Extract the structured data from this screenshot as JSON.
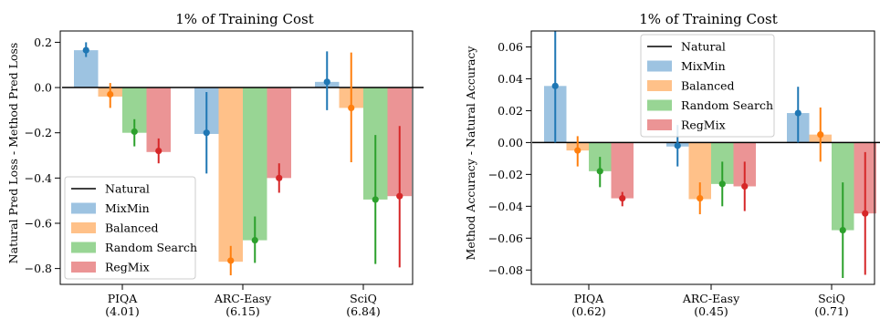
{
  "series_meta": [
    {
      "name": "MixMin",
      "bar_color": "#9dc3e1",
      "point_color": "#1f77b4"
    },
    {
      "name": "Balanced",
      "bar_color": "#ffc189",
      "point_color": "#ff7f0e"
    },
    {
      "name": "Random Search",
      "bar_color": "#98d594",
      "point_color": "#2ca02c"
    },
    {
      "name": "RegMix",
      "bar_color": "#eb9495",
      "point_color": "#d62728"
    }
  ],
  "baseline_label": "Natural",
  "chart_data": [
    {
      "type": "bar",
      "title": "1% of Training Cost",
      "ylabel": "Natural Pred Loss - Method Pred Loss",
      "xlabel": "",
      "categories": [
        "PIQA",
        "ARC-Easy",
        "SciQ"
      ],
      "category_sublabels": [
        "(4.01)",
        "(6.15)",
        "(6.84)"
      ],
      "ylim": [
        -0.87,
        0.25
      ],
      "yticks": [
        0.2,
        0.0,
        -0.2,
        -0.4,
        -0.6,
        -0.8
      ],
      "ytick_labels": [
        "0.2",
        "0.0",
        "−0.2",
        "−0.4",
        "−0.6",
        "−0.8"
      ],
      "legend_position": "lower-left",
      "series": [
        {
          "name": "MixMin",
          "values": [
            0.165,
            -0.205,
            0.025
          ],
          "points": [
            0.165,
            -0.2,
            0.025
          ],
          "err_low": [
            0.135,
            -0.38,
            -0.1
          ],
          "err_high": [
            0.2,
            -0.02,
            0.16
          ]
        },
        {
          "name": "Balanced",
          "values": [
            -0.04,
            -0.77,
            -0.09
          ],
          "points": [
            -0.03,
            -0.765,
            -0.09
          ],
          "err_low": [
            -0.09,
            -0.83,
            -0.33
          ],
          "err_high": [
            0.02,
            -0.7,
            0.155
          ]
        },
        {
          "name": "Random Search",
          "values": [
            -0.2,
            -0.675,
            -0.495
          ],
          "points": [
            -0.195,
            -0.675,
            -0.495
          ],
          "err_low": [
            -0.26,
            -0.775,
            -0.78
          ],
          "err_high": [
            -0.14,
            -0.57,
            -0.21
          ]
        },
        {
          "name": "RegMix",
          "values": [
            -0.285,
            -0.4,
            -0.48
          ],
          "points": [
            -0.28,
            -0.4,
            -0.48
          ],
          "err_low": [
            -0.335,
            -0.465,
            -0.795
          ],
          "err_high": [
            -0.225,
            -0.335,
            -0.17
          ]
        }
      ]
    },
    {
      "type": "bar",
      "title": "1% of Training Cost",
      "ylabel": "Method Accuracy - Natural Accuracy",
      "xlabel": "",
      "categories": [
        "PIQA",
        "ARC-Easy",
        "SciQ"
      ],
      "category_sublabels": [
        "(0.62)",
        "(0.45)",
        "(0.71)"
      ],
      "ylim": [
        -0.089,
        0.07
      ],
      "yticks": [
        0.06,
        0.04,
        0.02,
        0.0,
        -0.02,
        -0.04,
        -0.06,
        -0.08
      ],
      "ytick_labels": [
        "0.06",
        "0.04",
        "0.02",
        "0.00",
        "−0.02",
        "−0.04",
        "−0.06",
        "−0.08"
      ],
      "legend_position": "top-center",
      "series": [
        {
          "name": "MixMin",
          "values": [
            0.0355,
            -0.0025,
            0.0185
          ],
          "points": [
            0.0355,
            -0.002,
            0.0185
          ],
          "err_low": [
            0.0,
            -0.015,
            0.0
          ],
          "err_high": [
            0.07,
            0.011,
            0.035
          ]
        },
        {
          "name": "Balanced",
          "values": [
            -0.005,
            -0.0355,
            0.005
          ],
          "points": [
            -0.005,
            -0.035,
            0.005
          ],
          "err_low": [
            -0.015,
            -0.045,
            -0.012
          ],
          "err_high": [
            0.004,
            -0.025,
            0.022
          ]
        },
        {
          "name": "Random Search",
          "values": [
            -0.018,
            -0.026,
            -0.055
          ],
          "points": [
            -0.018,
            -0.026,
            -0.055
          ],
          "err_low": [
            -0.028,
            -0.04,
            -0.085
          ],
          "err_high": [
            -0.009,
            -0.012,
            -0.025
          ]
        },
        {
          "name": "RegMix",
          "values": [
            -0.035,
            -0.0275,
            -0.0445
          ],
          "points": [
            -0.035,
            -0.0275,
            -0.0445
          ],
          "err_low": [
            -0.04,
            -0.043,
            -0.083
          ],
          "err_high": [
            -0.031,
            -0.012,
            -0.006
          ]
        }
      ]
    }
  ]
}
